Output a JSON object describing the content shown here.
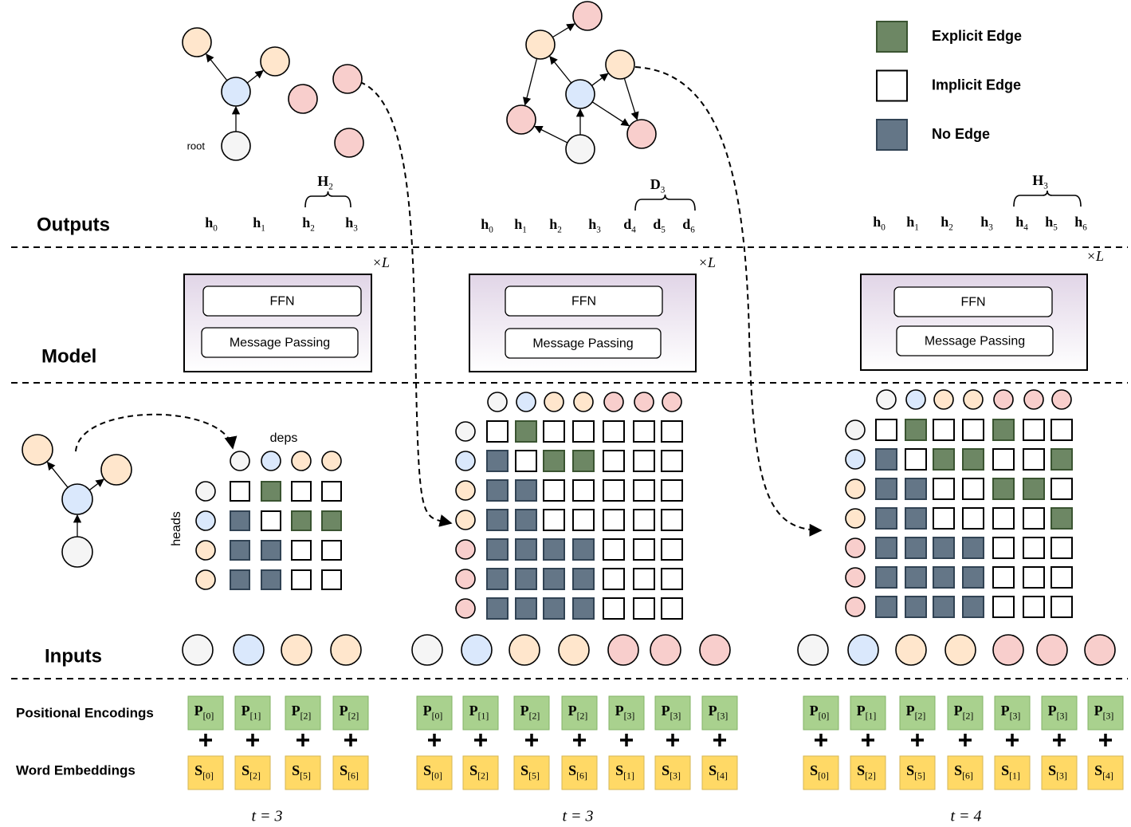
{
  "legend": {
    "items": [
      {
        "label": "Explicit Edge",
        "color": "#6d8764",
        "stroke": "#3a5431"
      },
      {
        "label": "Implicit Edge",
        "color": "#ffffff",
        "stroke": "#000000"
      },
      {
        "label": "No Edge",
        "color": "#647687",
        "stroke": "#314354"
      }
    ]
  },
  "rows": {
    "outputs": "Outputs",
    "model": "Model",
    "inputs": "Inputs",
    "positional": "Positional Encodings",
    "word": "Word Embeddings"
  },
  "graph_labels": {
    "root": "root",
    "deps": "deps",
    "heads": "heads"
  },
  "panels": [
    {
      "outputs": [
        {
          "base": "h",
          "sub": "0"
        },
        {
          "base": "h",
          "sub": "1"
        },
        {
          "base": "h",
          "sub": "2"
        },
        {
          "base": "h",
          "sub": "3"
        }
      ],
      "group": {
        "base": "H",
        "sub": "2"
      },
      "repeat": "×L",
      "model": [
        "FFN",
        "Message Passing"
      ],
      "nodes": [
        "#f5f5f5",
        "#dae8fc",
        "#ffe6cc",
        "#ffe6cc"
      ],
      "matrix": [
        [
          1,
          0,
          1,
          1
        ],
        [
          2,
          1,
          0,
          0
        ],
        [
          2,
          2,
          1,
          1
        ],
        [
          2,
          2,
          1,
          1
        ]
      ],
      "positional": [
        {
          "base": "P",
          "sub": "[0]"
        },
        {
          "base": "P",
          "sub": "[1]"
        },
        {
          "base": "P",
          "sub": "[2]"
        },
        {
          "base": "P",
          "sub": "[2]"
        }
      ],
      "word": [
        {
          "base": "S",
          "sub": "[0]"
        },
        {
          "base": "S",
          "sub": "[2]"
        },
        {
          "base": "S",
          "sub": "[5]"
        },
        {
          "base": "S",
          "sub": "[6]"
        }
      ],
      "time": "t = 3"
    },
    {
      "outputs": [
        {
          "base": "h",
          "sub": "0"
        },
        {
          "base": "h",
          "sub": "1"
        },
        {
          "base": "h",
          "sub": "2"
        },
        {
          "base": "h",
          "sub": "3"
        },
        {
          "base": "d",
          "sub": "4"
        },
        {
          "base": "d",
          "sub": "5"
        },
        {
          "base": "d",
          "sub": "6"
        }
      ],
      "group": {
        "base": "D",
        "sub": "3"
      },
      "repeat": "×L",
      "model": [
        "FFN",
        "Message Passing"
      ],
      "nodes": [
        "#f5f5f5",
        "#dae8fc",
        "#ffe6cc",
        "#ffe6cc",
        "#f8cecc",
        "#f8cecc",
        "#f8cecc"
      ],
      "matrix": [
        [
          1,
          0,
          1,
          1,
          1,
          1,
          1
        ],
        [
          2,
          1,
          0,
          0,
          1,
          1,
          1
        ],
        [
          2,
          2,
          1,
          1,
          1,
          1,
          1
        ],
        [
          2,
          2,
          1,
          1,
          1,
          1,
          1
        ],
        [
          2,
          2,
          2,
          2,
          1,
          1,
          1
        ],
        [
          2,
          2,
          2,
          2,
          1,
          1,
          1
        ],
        [
          2,
          2,
          2,
          2,
          1,
          1,
          1
        ]
      ],
      "positional": [
        {
          "base": "P",
          "sub": "[0]"
        },
        {
          "base": "P",
          "sub": "[1]"
        },
        {
          "base": "P",
          "sub": "[2]"
        },
        {
          "base": "P",
          "sub": "[2]"
        },
        {
          "base": "P",
          "sub": "[3]"
        },
        {
          "base": "P",
          "sub": "[3]"
        },
        {
          "base": "P",
          "sub": "[3]"
        }
      ],
      "word": [
        {
          "base": "S",
          "sub": "[0]"
        },
        {
          "base": "S",
          "sub": "[2]"
        },
        {
          "base": "S",
          "sub": "[5]"
        },
        {
          "base": "S",
          "sub": "[6]"
        },
        {
          "base": "S",
          "sub": "[1]"
        },
        {
          "base": "S",
          "sub": "[3]"
        },
        {
          "base": "S",
          "sub": "[4]"
        }
      ],
      "time": "t = 3"
    },
    {
      "outputs": [
        {
          "base": "h",
          "sub": "0"
        },
        {
          "base": "h",
          "sub": "1"
        },
        {
          "base": "h",
          "sub": "2"
        },
        {
          "base": "h",
          "sub": "3"
        },
        {
          "base": "h",
          "sub": "4"
        },
        {
          "base": "h",
          "sub": "5"
        },
        {
          "base": "h",
          "sub": "6"
        }
      ],
      "group": {
        "base": "H",
        "sub": "3"
      },
      "repeat": "×L",
      "model": [
        "FFN",
        "Message Passing"
      ],
      "nodes": [
        "#f5f5f5",
        "#dae8fc",
        "#ffe6cc",
        "#ffe6cc",
        "#f8cecc",
        "#f8cecc",
        "#f8cecc"
      ],
      "matrix": [
        [
          1,
          0,
          1,
          1,
          0,
          1,
          1
        ],
        [
          2,
          1,
          0,
          0,
          1,
          1,
          0
        ],
        [
          2,
          2,
          1,
          1,
          0,
          0,
          1
        ],
        [
          2,
          2,
          1,
          1,
          1,
          1,
          0
        ],
        [
          2,
          2,
          2,
          2,
          1,
          1,
          1
        ],
        [
          2,
          2,
          2,
          2,
          1,
          1,
          1
        ],
        [
          2,
          2,
          2,
          2,
          1,
          1,
          1
        ]
      ],
      "positional": [
        {
          "base": "P",
          "sub": "[0]"
        },
        {
          "base": "P",
          "sub": "[1]"
        },
        {
          "base": "P",
          "sub": "[2]"
        },
        {
          "base": "P",
          "sub": "[2]"
        },
        {
          "base": "P",
          "sub": "[3]"
        },
        {
          "base": "P",
          "sub": "[3]"
        },
        {
          "base": "P",
          "sub": "[3]"
        }
      ],
      "word": [
        {
          "base": "S",
          "sub": "[0]"
        },
        {
          "base": "S",
          "sub": "[2]"
        },
        {
          "base": "S",
          "sub": "[5]"
        },
        {
          "base": "S",
          "sub": "[6]"
        },
        {
          "base": "S",
          "sub": "[1]"
        },
        {
          "base": "S",
          "sub": "[3]"
        },
        {
          "base": "S",
          "sub": "[4]"
        }
      ],
      "time": "t = 4"
    }
  ]
}
